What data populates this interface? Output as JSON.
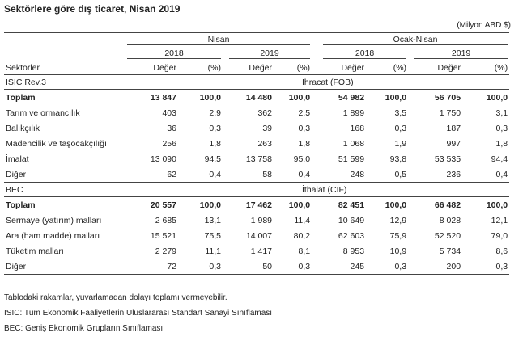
{
  "title": "Sektörlere göre dış ticaret, Nisan 2019",
  "unit": "(Milyon ABD $)",
  "header": {
    "periods": [
      "Nisan",
      "Ocak-Nisan"
    ],
    "years": [
      "2018",
      "2019",
      "2018",
      "2019"
    ],
    "row_label": "Sektörler",
    "value_label": "Değer",
    "pct_label": "(%)"
  },
  "sections": [
    {
      "class_label": "ISIC  Rev.3",
      "flow_label": "İhracat (FOB)",
      "rows": [
        {
          "label": "Toplam",
          "bold": true,
          "cells": [
            "13 847",
            "100,0",
            "14 480",
            "100,0",
            "54 982",
            "100,0",
            "56 705",
            "100,0"
          ]
        },
        {
          "label": "Tarım ve ormancılık",
          "cells": [
            "403",
            "2,9",
            "362",
            "2,5",
            "1 899",
            "3,5",
            "1 750",
            "3,1"
          ]
        },
        {
          "label": "Balıkçılık",
          "cells": [
            "36",
            "0,3",
            "39",
            "0,3",
            "168",
            "0,3",
            "187",
            "0,3"
          ]
        },
        {
          "label": "Madencilik ve taşocakçılığı",
          "cells": [
            "256",
            "1,8",
            "263",
            "1,8",
            "1 068",
            "1,9",
            "997",
            "1,8"
          ]
        },
        {
          "label": "İmalat",
          "cells": [
            "13 090",
            "94,5",
            "13 758",
            "95,0",
            "51 599",
            "93,8",
            "53 535",
            "94,4"
          ]
        },
        {
          "label": "Diğer",
          "cells": [
            "62",
            "0,4",
            "58",
            "0,4",
            "248",
            "0,5",
            "236",
            "0,4"
          ]
        }
      ]
    },
    {
      "class_label": "BEC",
      "flow_label": "İthalat (CIF)",
      "rows": [
        {
          "label": "Toplam",
          "bold": true,
          "cells": [
            "20 557",
            "100,0",
            "17 462",
            "100,0",
            "82 451",
            "100,0",
            "66 482",
            "100,0"
          ]
        },
        {
          "label": "Sermaye (yatırım) malları",
          "cells": [
            "2 685",
            "13,1",
            "1 989",
            "11,4",
            "10 649",
            "12,9",
            "8 028",
            "12,1"
          ]
        },
        {
          "label": "Ara (ham madde) malları",
          "cells": [
            "15 521",
            "75,5",
            "14 007",
            "80,2",
            "62 603",
            "75,9",
            "52 520",
            "79,0"
          ]
        },
        {
          "label": "Tüketim malları",
          "cells": [
            "2 279",
            "11,1",
            "1 417",
            "8,1",
            "8 953",
            "10,9",
            "5 734",
            "8,6"
          ]
        },
        {
          "label": "Diğer",
          "cells": [
            "72",
            "0,3",
            "50",
            "0,3",
            "245",
            "0,3",
            "200",
            "0,3"
          ]
        }
      ]
    }
  ],
  "footnotes": [
    "Tablodaki rakamlar, yuvarlamadan dolayı toplamı vermeyebilir.",
    "ISIC: Tüm Ekonomik Faaliyetlerin Uluslararası Standart Sanayi Sınıflaması",
    "BEC: Geniş Ekonomik Grupların Sınıflaması"
  ]
}
